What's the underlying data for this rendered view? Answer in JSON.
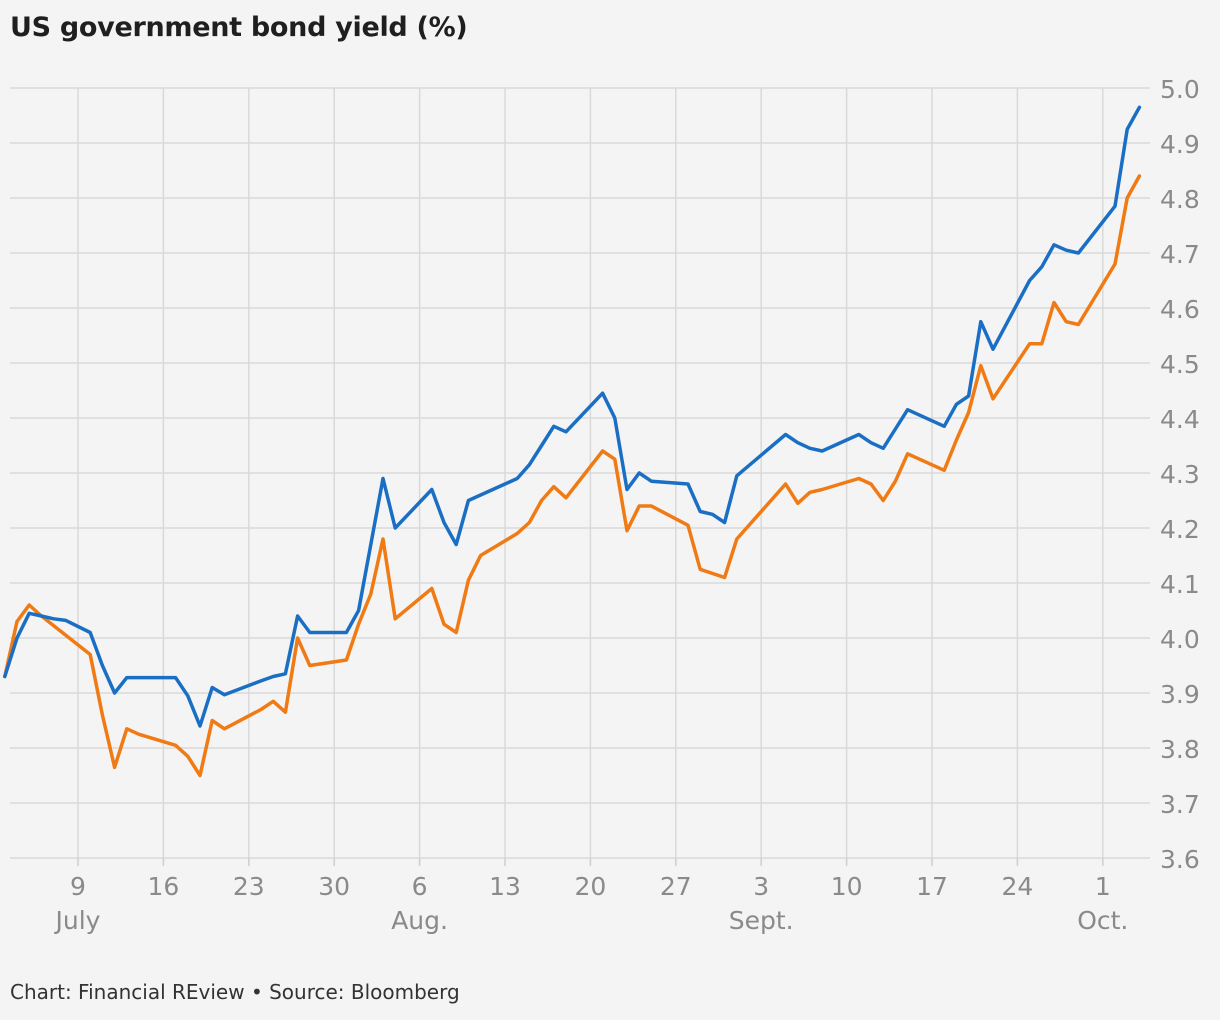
{
  "title": "US government bond yield (%)",
  "footer": "Chart: Financial REview • Source: Bloomberg",
  "colors": {
    "background": "#f4f4f4",
    "grid": "#d9d9d9",
    "axis": "#cfcfcf",
    "tick_text": "#8a8a8a",
    "series_1": "#1a6fc4",
    "series_2": "#f07a14"
  },
  "chart_data": {
    "type": "line",
    "title": "US government bond yield (%)",
    "xlabel": "",
    "ylabel": "",
    "ylim": [
      3.6,
      5.0
    ],
    "y_ticks": [
      "5.0",
      "4.9",
      "4.8",
      "4.7",
      "4.6",
      "4.5",
      "4.4",
      "4.3",
      "4.2",
      "4.1",
      "4.0",
      "3.9",
      "3.8",
      "3.7",
      "3.6"
    ],
    "y_axis_side": "right",
    "grid": true,
    "x_ticks": [
      {
        "label": "9",
        "date": "2023-07-09"
      },
      {
        "label": "16",
        "date": "2023-07-16"
      },
      {
        "label": "23",
        "date": "2023-07-23"
      },
      {
        "label": "30",
        "date": "2023-07-30"
      },
      {
        "label": "6",
        "date": "2023-08-06"
      },
      {
        "label": "13",
        "date": "2023-08-13"
      },
      {
        "label": "20",
        "date": "2023-08-20"
      },
      {
        "label": "27",
        "date": "2023-08-27"
      },
      {
        "label": "3",
        "date": "2023-09-03"
      },
      {
        "label": "10",
        "date": "2023-09-10"
      },
      {
        "label": "17",
        "date": "2023-09-17"
      },
      {
        "label": "24",
        "date": "2023-09-24"
      },
      {
        "label": "1",
        "date": "2023-10-01"
      }
    ],
    "month_labels": [
      {
        "label": "July",
        "date": "2023-07-09"
      },
      {
        "label": "Aug.",
        "date": "2023-08-06"
      },
      {
        "label": "Sept.",
        "date": "2023-09-03"
      },
      {
        "label": "Oct.",
        "date": "2023-10-01"
      }
    ],
    "x_start": "2023-07-03",
    "x_end": "2023-10-07",
    "series": [
      {
        "color": "#1a6fc4",
        "points": [
          [
            "2023-07-03",
            3.93
          ],
          [
            "2023-07-04",
            4.0
          ],
          [
            "2023-07-05",
            4.045
          ],
          [
            "2023-07-06",
            4.04
          ],
          [
            "2023-07-07",
            4.035
          ],
          [
            "2023-07-08",
            4.032
          ],
          [
            "2023-07-10",
            4.01
          ],
          [
            "2023-07-11",
            3.95
          ],
          [
            "2023-07-12",
            3.9
          ],
          [
            "2023-07-13",
            3.928
          ],
          [
            "2023-07-14",
            3.928
          ],
          [
            "2023-07-17",
            3.928
          ],
          [
            "2023-07-18",
            3.895
          ],
          [
            "2023-07-19",
            3.84
          ],
          [
            "2023-07-20",
            3.91
          ],
          [
            "2023-07-21",
            3.897
          ],
          [
            "2023-07-24",
            3.922
          ],
          [
            "2023-07-25",
            3.93
          ],
          [
            "2023-07-26",
            3.935
          ],
          [
            "2023-07-27",
            4.04
          ],
          [
            "2023-07-28",
            4.01
          ],
          [
            "2023-07-31",
            4.01
          ],
          [
            "2023-08-01",
            4.05
          ],
          [
            "2023-08-02",
            4.17
          ],
          [
            "2023-08-03",
            4.29
          ],
          [
            "2023-08-04",
            4.2
          ],
          [
            "2023-08-07",
            4.27
          ],
          [
            "2023-08-08",
            4.21
          ],
          [
            "2023-08-09",
            4.17
          ],
          [
            "2023-08-10",
            4.25
          ],
          [
            "2023-08-11",
            4.26
          ],
          [
            "2023-08-14",
            4.29
          ],
          [
            "2023-08-15",
            4.315
          ],
          [
            "2023-08-16",
            4.35
          ],
          [
            "2023-08-17",
            4.385
          ],
          [
            "2023-08-18",
            4.375
          ],
          [
            "2023-08-21",
            4.445
          ],
          [
            "2023-08-22",
            4.4
          ],
          [
            "2023-08-23",
            4.27
          ],
          [
            "2023-08-24",
            4.3
          ],
          [
            "2023-08-25",
            4.285
          ],
          [
            "2023-08-28",
            4.28
          ],
          [
            "2023-08-29",
            4.23
          ],
          [
            "2023-08-30",
            4.225
          ],
          [
            "2023-08-31",
            4.21
          ],
          [
            "2023-09-01",
            4.295
          ],
          [
            "2023-09-05",
            4.37
          ],
          [
            "2023-09-06",
            4.355
          ],
          [
            "2023-09-07",
            4.345
          ],
          [
            "2023-09-08",
            4.34
          ],
          [
            "2023-09-11",
            4.37
          ],
          [
            "2023-09-12",
            4.355
          ],
          [
            "2023-09-13",
            4.345
          ],
          [
            "2023-09-14",
            4.38
          ],
          [
            "2023-09-15",
            4.415
          ],
          [
            "2023-09-18",
            4.385
          ],
          [
            "2023-09-19",
            4.425
          ],
          [
            "2023-09-20",
            4.44
          ],
          [
            "2023-09-21",
            4.575
          ],
          [
            "2023-09-22",
            4.525
          ],
          [
            "2023-09-25",
            4.65
          ],
          [
            "2023-09-26",
            4.675
          ],
          [
            "2023-09-27",
            4.715
          ],
          [
            "2023-09-28",
            4.705
          ],
          [
            "2023-09-29",
            4.7
          ],
          [
            "2023-10-02",
            4.785
          ],
          [
            "2023-10-03",
            4.925
          ],
          [
            "2023-10-04",
            4.965
          ]
        ]
      },
      {
        "color": "#f07a14",
        "points": [
          [
            "2023-07-03",
            3.93
          ],
          [
            "2023-07-04",
            4.03
          ],
          [
            "2023-07-05",
            4.06
          ],
          [
            "2023-07-06",
            4.04
          ],
          [
            "2023-07-10",
            3.97
          ],
          [
            "2023-07-11",
            3.86
          ],
          [
            "2023-07-12",
            3.765
          ],
          [
            "2023-07-13",
            3.835
          ],
          [
            "2023-07-14",
            3.825
          ],
          [
            "2023-07-17",
            3.805
          ],
          [
            "2023-07-18",
            3.785
          ],
          [
            "2023-07-19",
            3.75
          ],
          [
            "2023-07-20",
            3.85
          ],
          [
            "2023-07-21",
            3.835
          ],
          [
            "2023-07-24",
            3.87
          ],
          [
            "2023-07-25",
            3.885
          ],
          [
            "2023-07-26",
            3.865
          ],
          [
            "2023-07-27",
            4.0
          ],
          [
            "2023-07-28",
            3.95
          ],
          [
            "2023-07-31",
            3.96
          ],
          [
            "2023-08-01",
            4.025
          ],
          [
            "2023-08-02",
            4.08
          ],
          [
            "2023-08-03",
            4.18
          ],
          [
            "2023-08-04",
            4.035
          ],
          [
            "2023-08-07",
            4.09
          ],
          [
            "2023-08-08",
            4.025
          ],
          [
            "2023-08-09",
            4.01
          ],
          [
            "2023-08-10",
            4.105
          ],
          [
            "2023-08-11",
            4.15
          ],
          [
            "2023-08-14",
            4.19
          ],
          [
            "2023-08-15",
            4.21
          ],
          [
            "2023-08-16",
            4.25
          ],
          [
            "2023-08-17",
            4.275
          ],
          [
            "2023-08-18",
            4.255
          ],
          [
            "2023-08-21",
            4.34
          ],
          [
            "2023-08-22",
            4.325
          ],
          [
            "2023-08-23",
            4.195
          ],
          [
            "2023-08-24",
            4.24
          ],
          [
            "2023-08-25",
            4.24
          ],
          [
            "2023-08-28",
            4.205
          ],
          [
            "2023-08-29",
            4.125
          ],
          [
            "2023-08-31",
            4.11
          ],
          [
            "2023-09-01",
            4.18
          ],
          [
            "2023-09-05",
            4.28
          ],
          [
            "2023-09-06",
            4.245
          ],
          [
            "2023-09-07",
            4.265
          ],
          [
            "2023-09-08",
            4.27
          ],
          [
            "2023-09-11",
            4.29
          ],
          [
            "2023-09-12",
            4.28
          ],
          [
            "2023-09-13",
            4.25
          ],
          [
            "2023-09-14",
            4.285
          ],
          [
            "2023-09-15",
            4.335
          ],
          [
            "2023-09-18",
            4.305
          ],
          [
            "2023-09-19",
            4.36
          ],
          [
            "2023-09-20",
            4.41
          ],
          [
            "2023-09-21",
            4.495
          ],
          [
            "2023-09-22",
            4.435
          ],
          [
            "2023-09-25",
            4.535
          ],
          [
            "2023-09-26",
            4.535
          ],
          [
            "2023-09-27",
            4.61
          ],
          [
            "2023-09-28",
            4.575
          ],
          [
            "2023-09-29",
            4.57
          ],
          [
            "2023-10-02",
            4.68
          ],
          [
            "2023-10-03",
            4.8
          ],
          [
            "2023-10-04",
            4.84
          ]
        ]
      }
    ]
  }
}
